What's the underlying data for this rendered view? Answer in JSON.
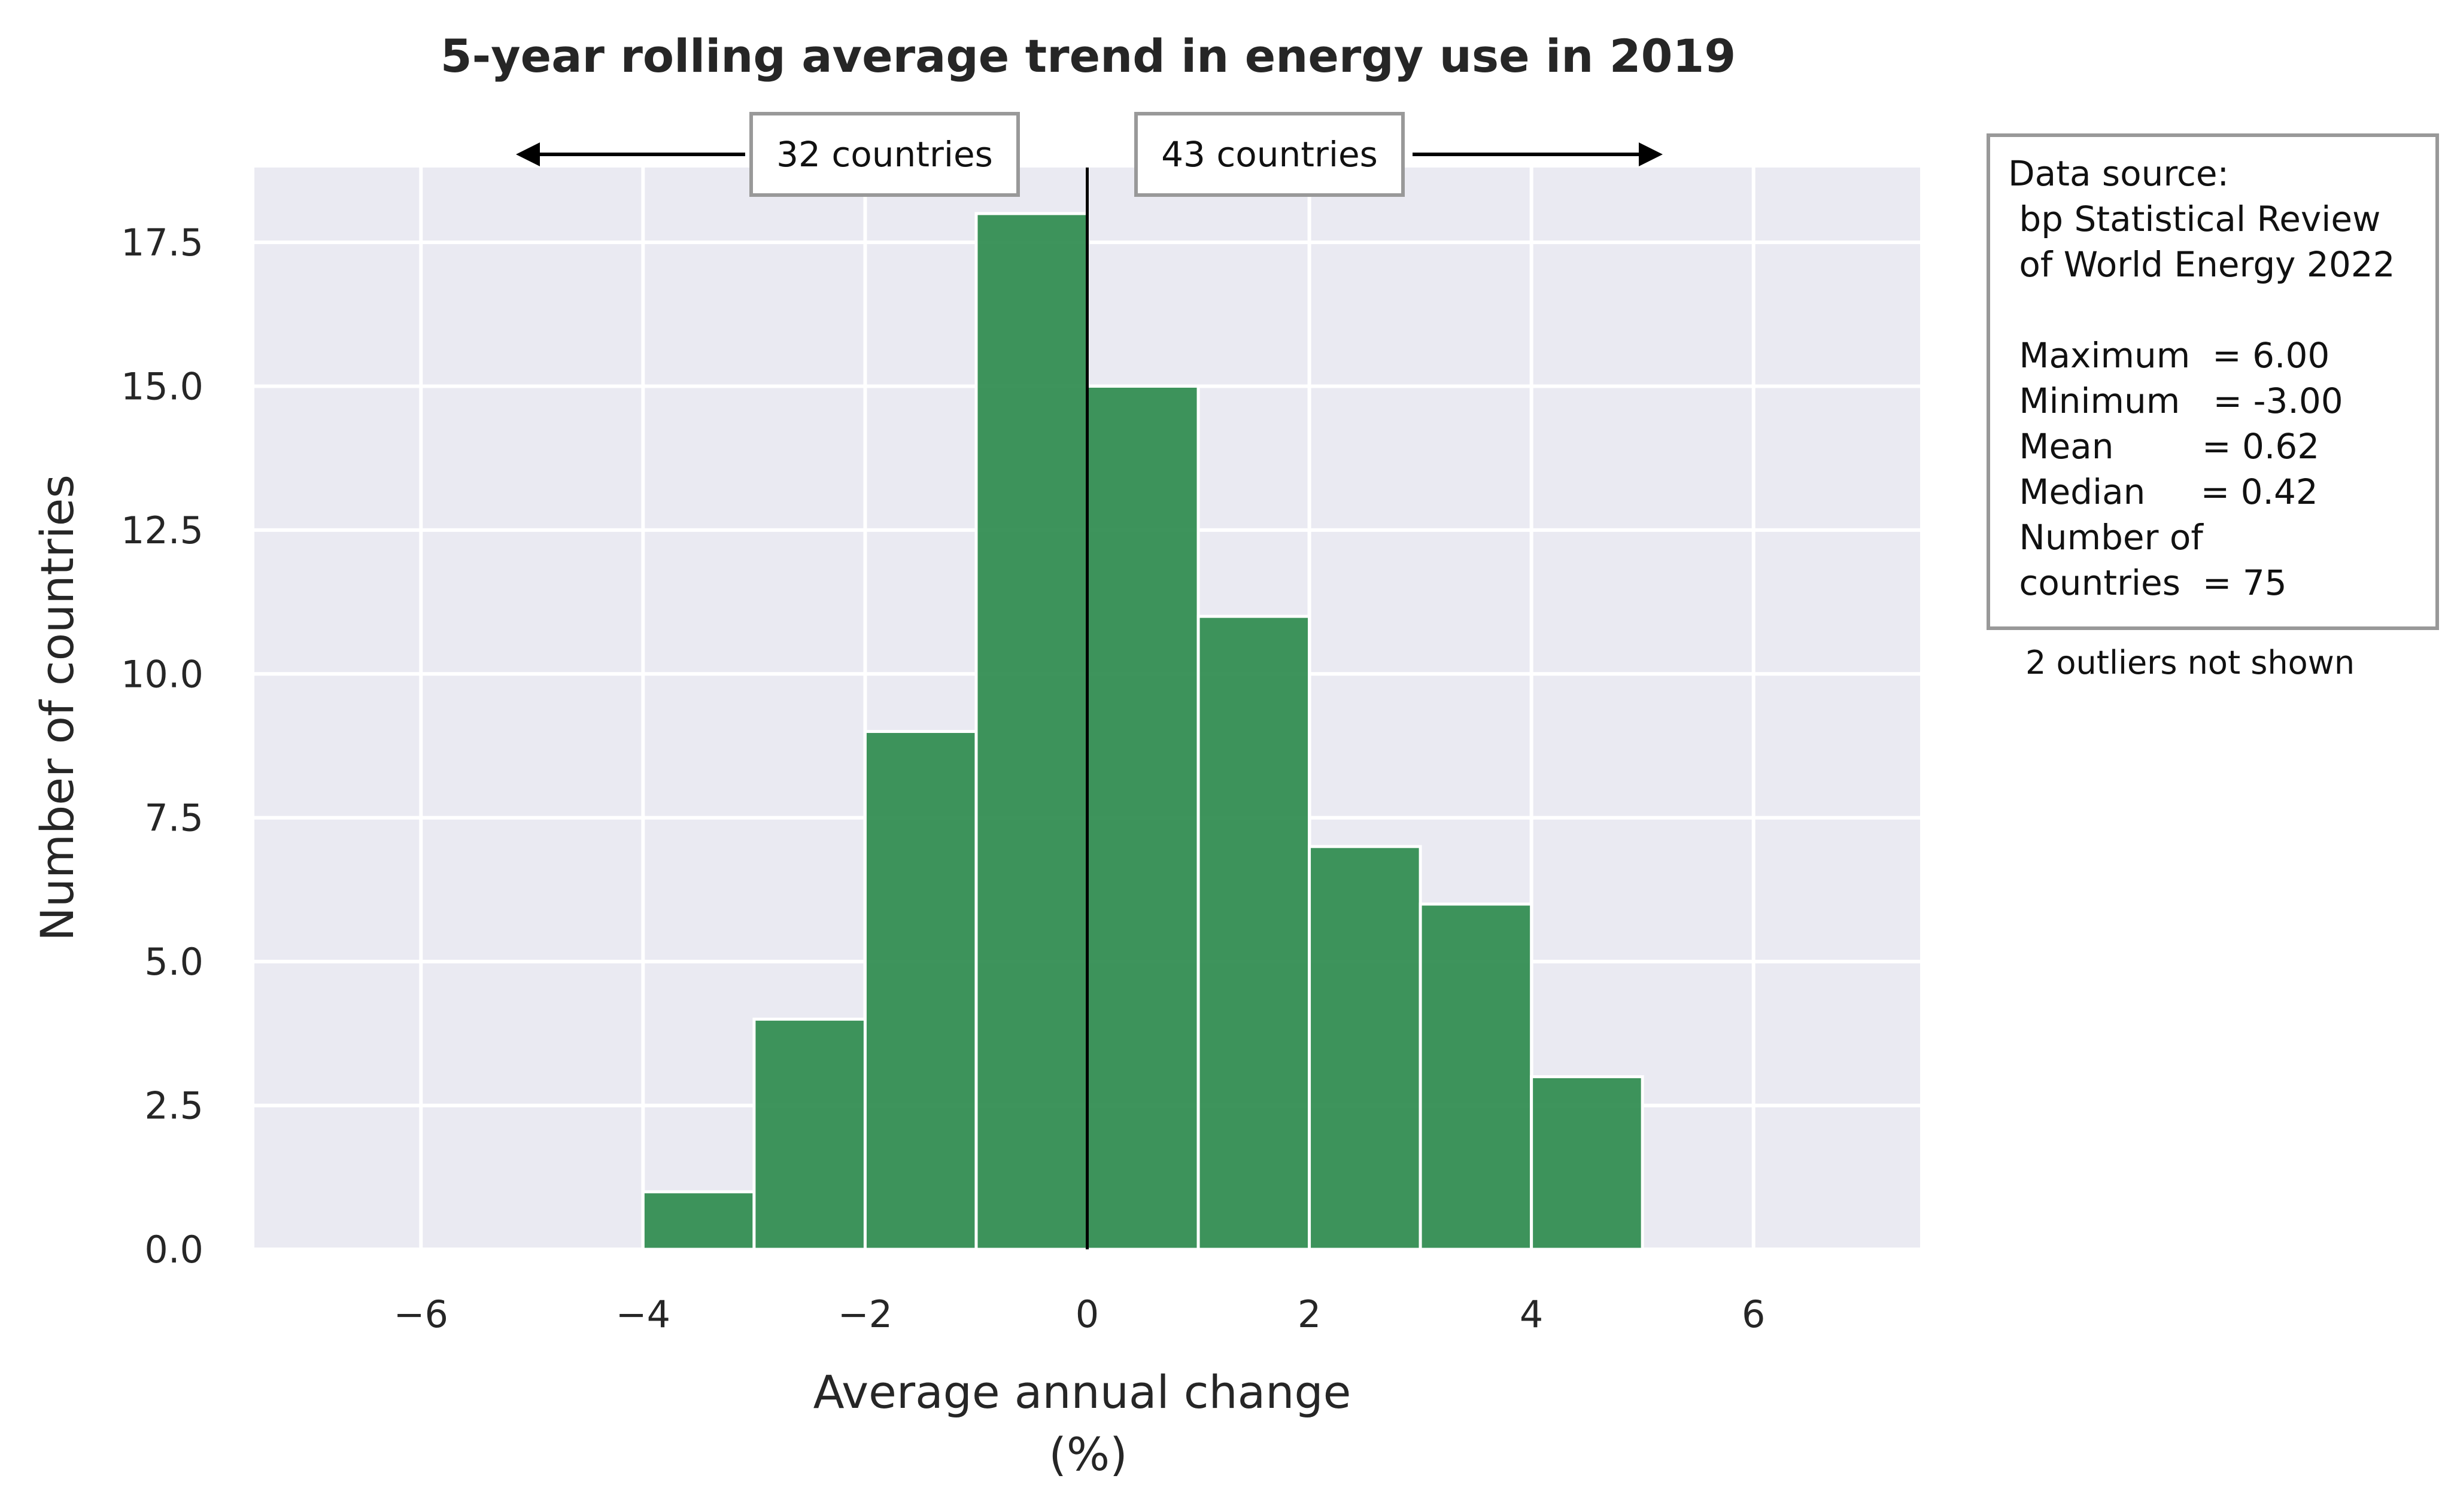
{
  "chart_data": {
    "type": "bar",
    "title": "5-year rolling average trend in energy use in 2019",
    "xlabel": "Average annual change",
    "xlabel_unit": "(%)",
    "ylabel": "Number of countries",
    "xlim": [
      -7.5,
      7.5
    ],
    "ylim": [
      0,
      18.8
    ],
    "x_ticks": [
      -6,
      -4,
      -2,
      0,
      2,
      4,
      6
    ],
    "x_tick_labels": [
      "−6",
      "−4",
      "−2",
      "0",
      "2",
      "4",
      "6"
    ],
    "y_ticks": [
      0,
      2.5,
      5,
      7.5,
      10,
      12.5,
      15,
      17.5
    ],
    "y_tick_labels": [
      "0.0",
      "2.5",
      "5.0",
      "7.5",
      "10.0",
      "12.5",
      "15.0",
      "17.5"
    ],
    "bin_edges": [
      -4,
      -3,
      -2,
      -1,
      0,
      1,
      2,
      3,
      4,
      5
    ],
    "counts": [
      1,
      4,
      9,
      18,
      15,
      11,
      7,
      6,
      3
    ],
    "bar_color": "#2e8b4e",
    "background_color": "#eaeaf2",
    "grid": true,
    "reference_line_x": 0,
    "annotations": {
      "left_count_label": "32 countries",
      "right_count_label": "43 countries"
    },
    "info_box": {
      "lines": [
        "Data source:",
        " bp Statistical Review",
        " of World Energy 2022",
        "",
        " Maximum  = 6.00",
        " Minimum   = -3.00",
        " Mean        = 0.62",
        " Median     = 0.42",
        " Number of",
        " countries  = 75"
      ],
      "note": "2 outliers not shown"
    }
  }
}
